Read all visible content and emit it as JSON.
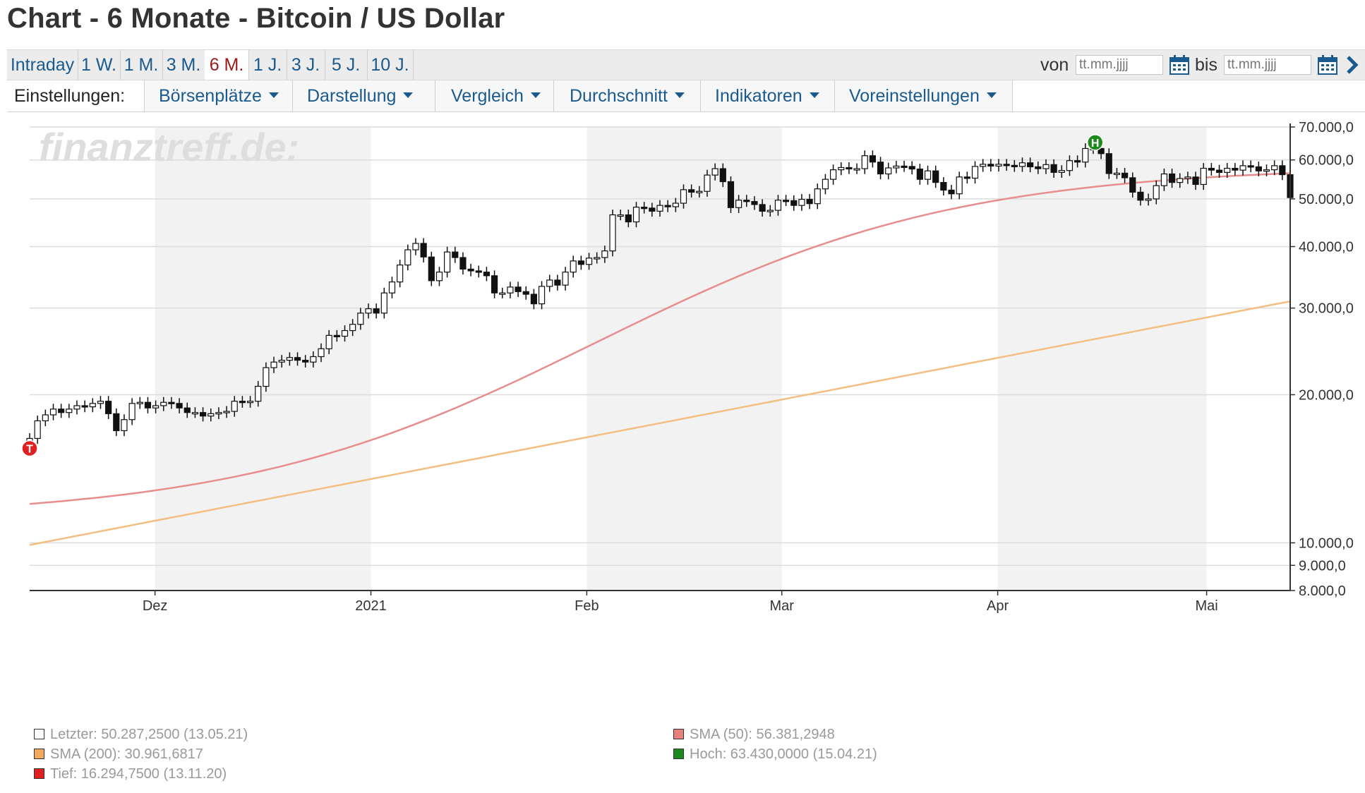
{
  "header": {
    "title": "Chart - 6 Monate - Bitcoin / US Dollar"
  },
  "range_tabs": [
    {
      "label": "Intraday",
      "active": false
    },
    {
      "label": "1 W.",
      "active": false
    },
    {
      "label": "1 M.",
      "active": false
    },
    {
      "label": "3 M.",
      "active": false
    },
    {
      "label": "6 M.",
      "active": true
    },
    {
      "label": "1 J.",
      "active": false
    },
    {
      "label": "3 J.",
      "active": false
    },
    {
      "label": "5 J.",
      "active": false
    },
    {
      "label": "10 J.",
      "active": false
    }
  ],
  "date_range": {
    "from_label": "von",
    "to_label": "bis",
    "from_placeholder": "tt.mm.jjjj",
    "to_placeholder": "tt.mm.jjjj",
    "icons": [
      "calendar-icon",
      "chevron-right-icon"
    ]
  },
  "settings": {
    "label": "Einstellungen:",
    "dropdowns": [
      "Börsenplätze",
      "Darstellung",
      "Vergleich",
      "Durchschnitt",
      "Indikatoren",
      "Voreinstellungen"
    ]
  },
  "colors": {
    "link": "#1a5a8f",
    "active_tab": "#a01818",
    "sma50": "#e88d8d",
    "sma200": "#f3bf80",
    "high_marker": "#1e8a1e",
    "low_marker": "#e02020"
  },
  "chart_data": {
    "type": "candlestick",
    "watermark": "finanztreff.de:",
    "y_scale": "log",
    "ylim": [
      8000,
      70000
    ],
    "yticks": [
      {
        "value": 70000,
        "label": "70.000,0"
      },
      {
        "value": 60000,
        "label": "60.000,0"
      },
      {
        "value": 50000,
        "label": "50.000,0"
      },
      {
        "value": 40000,
        "label": "40.000,0"
      },
      {
        "value": 30000,
        "label": "30.000,0"
      },
      {
        "value": 20000,
        "label": "20.000,0"
      },
      {
        "value": 10000,
        "label": "10.000,0"
      },
      {
        "value": 9000,
        "label": "9.000,0"
      },
      {
        "value": 8000,
        "label": "8.000,0"
      }
    ],
    "x_range": [
      "2020-11-13",
      "2021-05-13"
    ],
    "x_labels": [
      {
        "date": "2020-12-01",
        "label": "Dez"
      },
      {
        "date": "2021-01-01",
        "label": "2021"
      },
      {
        "date": "2021-02-01",
        "label": "Feb"
      },
      {
        "date": "2021-03-01",
        "label": "Mar"
      },
      {
        "date": "2021-04-01",
        "label": "Apr"
      },
      {
        "date": "2021-05-01",
        "label": "Mai"
      }
    ],
    "close": [
      16300,
      17700,
      18200,
      18700,
      18400,
      18700,
      19000,
      18900,
      19200,
      19400,
      18300,
      16900,
      17800,
      19200,
      19300,
      18800,
      19000,
      19300,
      19200,
      18800,
      18400,
      18400,
      18100,
      18300,
      18400,
      18500,
      19400,
      19300,
      19400,
      20800,
      22700,
      23300,
      23500,
      23800,
      23500,
      23300,
      23900,
      24800,
      26400,
      26300,
      27000,
      27800,
      29300,
      29900,
      29300,
      32200,
      33900,
      36700,
      39400,
      40600,
      38100,
      34100,
      35500,
      39000,
      38000,
      36000,
      35700,
      35500,
      34900,
      32200,
      32200,
      33100,
      32400,
      32000,
      30600,
      33200,
      34200,
      33400,
      35500,
      37400,
      36800,
      37900,
      38000,
      39200,
      46400,
      46400,
      44900,
      48100,
      47900,
      47200,
      48500,
      48200,
      49000,
      52200,
      51600,
      51800,
      55900,
      57600,
      54200,
      48000,
      49700,
      49400,
      48700,
      47200,
      47400,
      49700,
      49600,
      48500,
      49900,
      48900,
      52400,
      54800,
      57300,
      57900,
      57600,
      57600,
      61200,
      59400,
      56200,
      57800,
      58300,
      58200,
      57500,
      54800,
      57000,
      54000,
      52100,
      51200,
      55400,
      55100,
      58200,
      58800,
      58300,
      58800,
      58500,
      58200,
      59200,
      58100,
      57600,
      58700,
      56600,
      57100,
      59800,
      59400,
      63300,
      63300,
      61800,
      56300,
      56400,
      55200,
      51600,
      49700,
      50000,
      53200,
      56200,
      54000,
      55000,
      55400,
      53500,
      57700,
      57200,
      56600,
      57700,
      57200,
      58400,
      58100,
      57000,
      57300,
      58400,
      56000,
      50300
    ],
    "sma50": {
      "name": "SMA (50)",
      "start": 12000,
      "end": 56381.2948
    },
    "sma200": {
      "name": "SMA (200)",
      "start": 9900,
      "end": 30961.6817
    },
    "high_marker": {
      "label": "H",
      "value": 63430,
      "date": "2021-04-15"
    },
    "low_marker": {
      "label": "T",
      "value": 16294.75,
      "date": "2020-11-13"
    },
    "legend": [
      {
        "label": "Letzter: 50.287,2500 (13.05.21)",
        "color": "#ffffff"
      },
      {
        "label": "SMA (200): 30.961,6817",
        "color": "#f3a860"
      },
      {
        "label": "Tief: 16.294,7500 (13.11.20)",
        "color": "#e02020"
      },
      {
        "label": "SMA (50): 56.381,2948",
        "color": "#e88080"
      },
      {
        "label": "Hoch: 63.430,0000 (15.04.21)",
        "color": "#1e8a1e"
      }
    ]
  }
}
